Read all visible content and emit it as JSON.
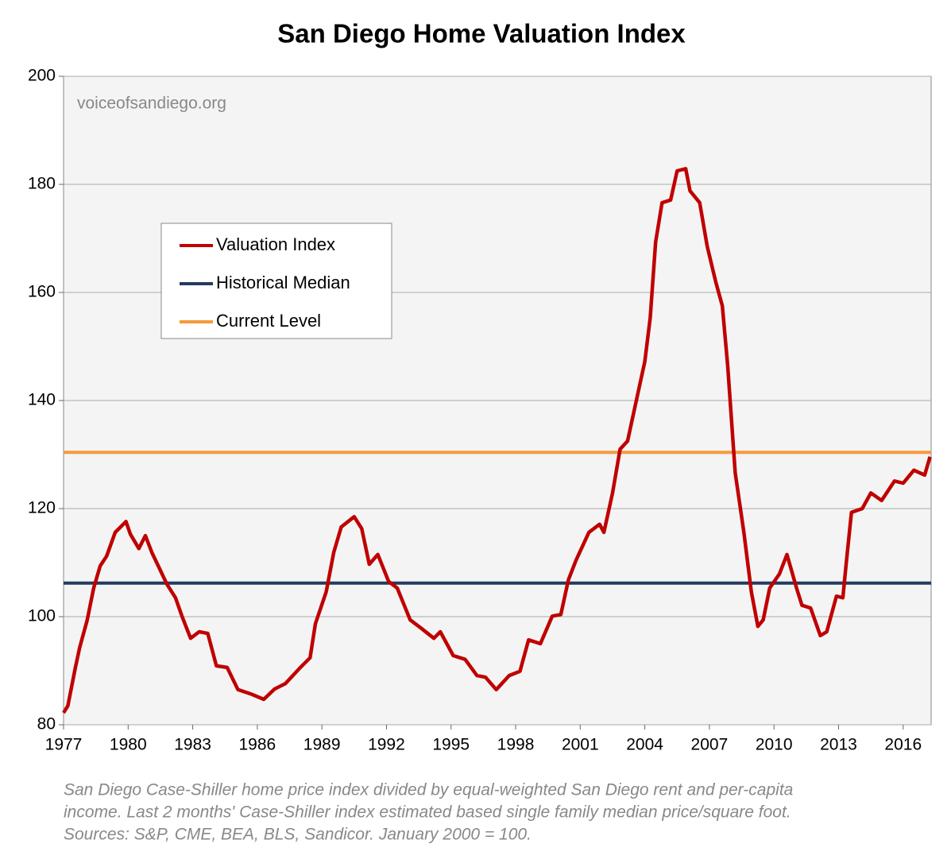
{
  "chart_data": {
    "type": "line",
    "title": "San Diego Home Valuation Index",
    "watermark": "voiceofsandiego.org",
    "notes": [
      "San Diego Case-Shiller home price index divided by equal-weighted San Diego rent and per-capita",
      "income. Last 2 months' Case-Shiller index estimated based single family median price/square foot.",
      "Sources: S&P, CME, BEA, BLS, Sandicor. January 2000 = 100."
    ],
    "xlim": [
      1977,
      2017.3
    ],
    "xticks": [
      1977,
      1980,
      1983,
      1986,
      1989,
      1992,
      1995,
      1998,
      2001,
      2004,
      2007,
      2010,
      2013,
      2016
    ],
    "ylim": [
      80,
      200
    ],
    "yticks": [
      80,
      100,
      120,
      140,
      160,
      180,
      200
    ],
    "grid": true,
    "legend": "upper left",
    "series": [
      {
        "name": "Valuation Index",
        "color": "#c00000",
        "x": [
          1977.0,
          1977.2,
          1977.55,
          1977.75,
          1978.1,
          1978.4,
          1978.7,
          1979.0,
          1979.4,
          1979.9,
          1980.1,
          1980.5,
          1980.8,
          1981.1,
          1981.4,
          1981.8,
          1982.2,
          1982.5,
          1982.9,
          1983.3,
          1983.7,
          1984.1,
          1984.6,
          1985.1,
          1985.7,
          1986.3,
          1986.8,
          1987.3,
          1988.0,
          1988.45,
          1988.7,
          1989.2,
          1989.55,
          1989.9,
          1990.5,
          1990.85,
          1991.2,
          1991.6,
          1992.1,
          1992.5,
          1993.1,
          1993.6,
          1994.2,
          1994.5,
          1995.1,
          1995.65,
          1996.2,
          1996.6,
          1997.1,
          1997.7,
          1998.2,
          1998.6,
          1999.15,
          1999.7,
          2000.1,
          2000.45,
          2000.8,
          2001.4,
          2001.9,
          2002.1,
          2002.5,
          2002.85,
          2003.2,
          2003.6,
          2004.0,
          2004.25,
          2004.5,
          2004.8,
          2005.2,
          2005.5,
          2005.9,
          2006.1,
          2006.55,
          2006.9,
          2007.3,
          2007.6,
          2007.85,
          2008.2,
          2008.6,
          2008.95,
          2009.25,
          2009.5,
          2009.8,
          2010.25,
          2010.6,
          2011.05,
          2011.3,
          2011.7,
          2012.15,
          2012.45,
          2012.9,
          2013.2,
          2013.35,
          2013.6,
          2014.1,
          2014.5,
          2015.0,
          2015.6,
          2016.0,
          2016.5,
          2017.0,
          2017.25
        ],
        "values": [
          82.2,
          83.5,
          90.6,
          94.3,
          99.4,
          105.3,
          109.4,
          111.2,
          115.6,
          117.6,
          115.3,
          112.6,
          115,
          111.9,
          109.4,
          106,
          103.5,
          100.1,
          96,
          97.2,
          96.9,
          90.9,
          90.6,
          86.5,
          85.7,
          84.7,
          86.6,
          87.6,
          90.6,
          92.4,
          98.7,
          104.6,
          111.9,
          116.6,
          118.5,
          116.3,
          109.7,
          111.5,
          106.5,
          105.3,
          99.4,
          97.9,
          96,
          97.2,
          92.8,
          92.1,
          89.1,
          88.8,
          86.5,
          89.1,
          89.9,
          95.7,
          95,
          100.1,
          100.4,
          106.8,
          110.4,
          115.6,
          117.1,
          115.6,
          122.9,
          131,
          132.5,
          139.9,
          147.2,
          155.3,
          169.3,
          176.6,
          177.1,
          182.5,
          182.9,
          178.8,
          176.6,
          168.5,
          161.9,
          157.5,
          146.5,
          126.6,
          115.6,
          104.6,
          98.2,
          99.4,
          105.3,
          107.9,
          111.5,
          105.3,
          102.1,
          101.6,
          96.5,
          97.2,
          103.8,
          103.5,
          109.7,
          119.3,
          120,
          122.9,
          121.5,
          125.1,
          124.7,
          127.1,
          126.2,
          129.6
        ]
      },
      {
        "name": "Historical Median",
        "color": "#243b5e",
        "x": [
          1977,
          2017.3
        ],
        "values": [
          106.2,
          106.2
        ]
      },
      {
        "name": "Current Level",
        "color": "#f59a3a",
        "x": [
          1977,
          2017.3
        ],
        "values": [
          130.4,
          130.4
        ]
      }
    ]
  }
}
